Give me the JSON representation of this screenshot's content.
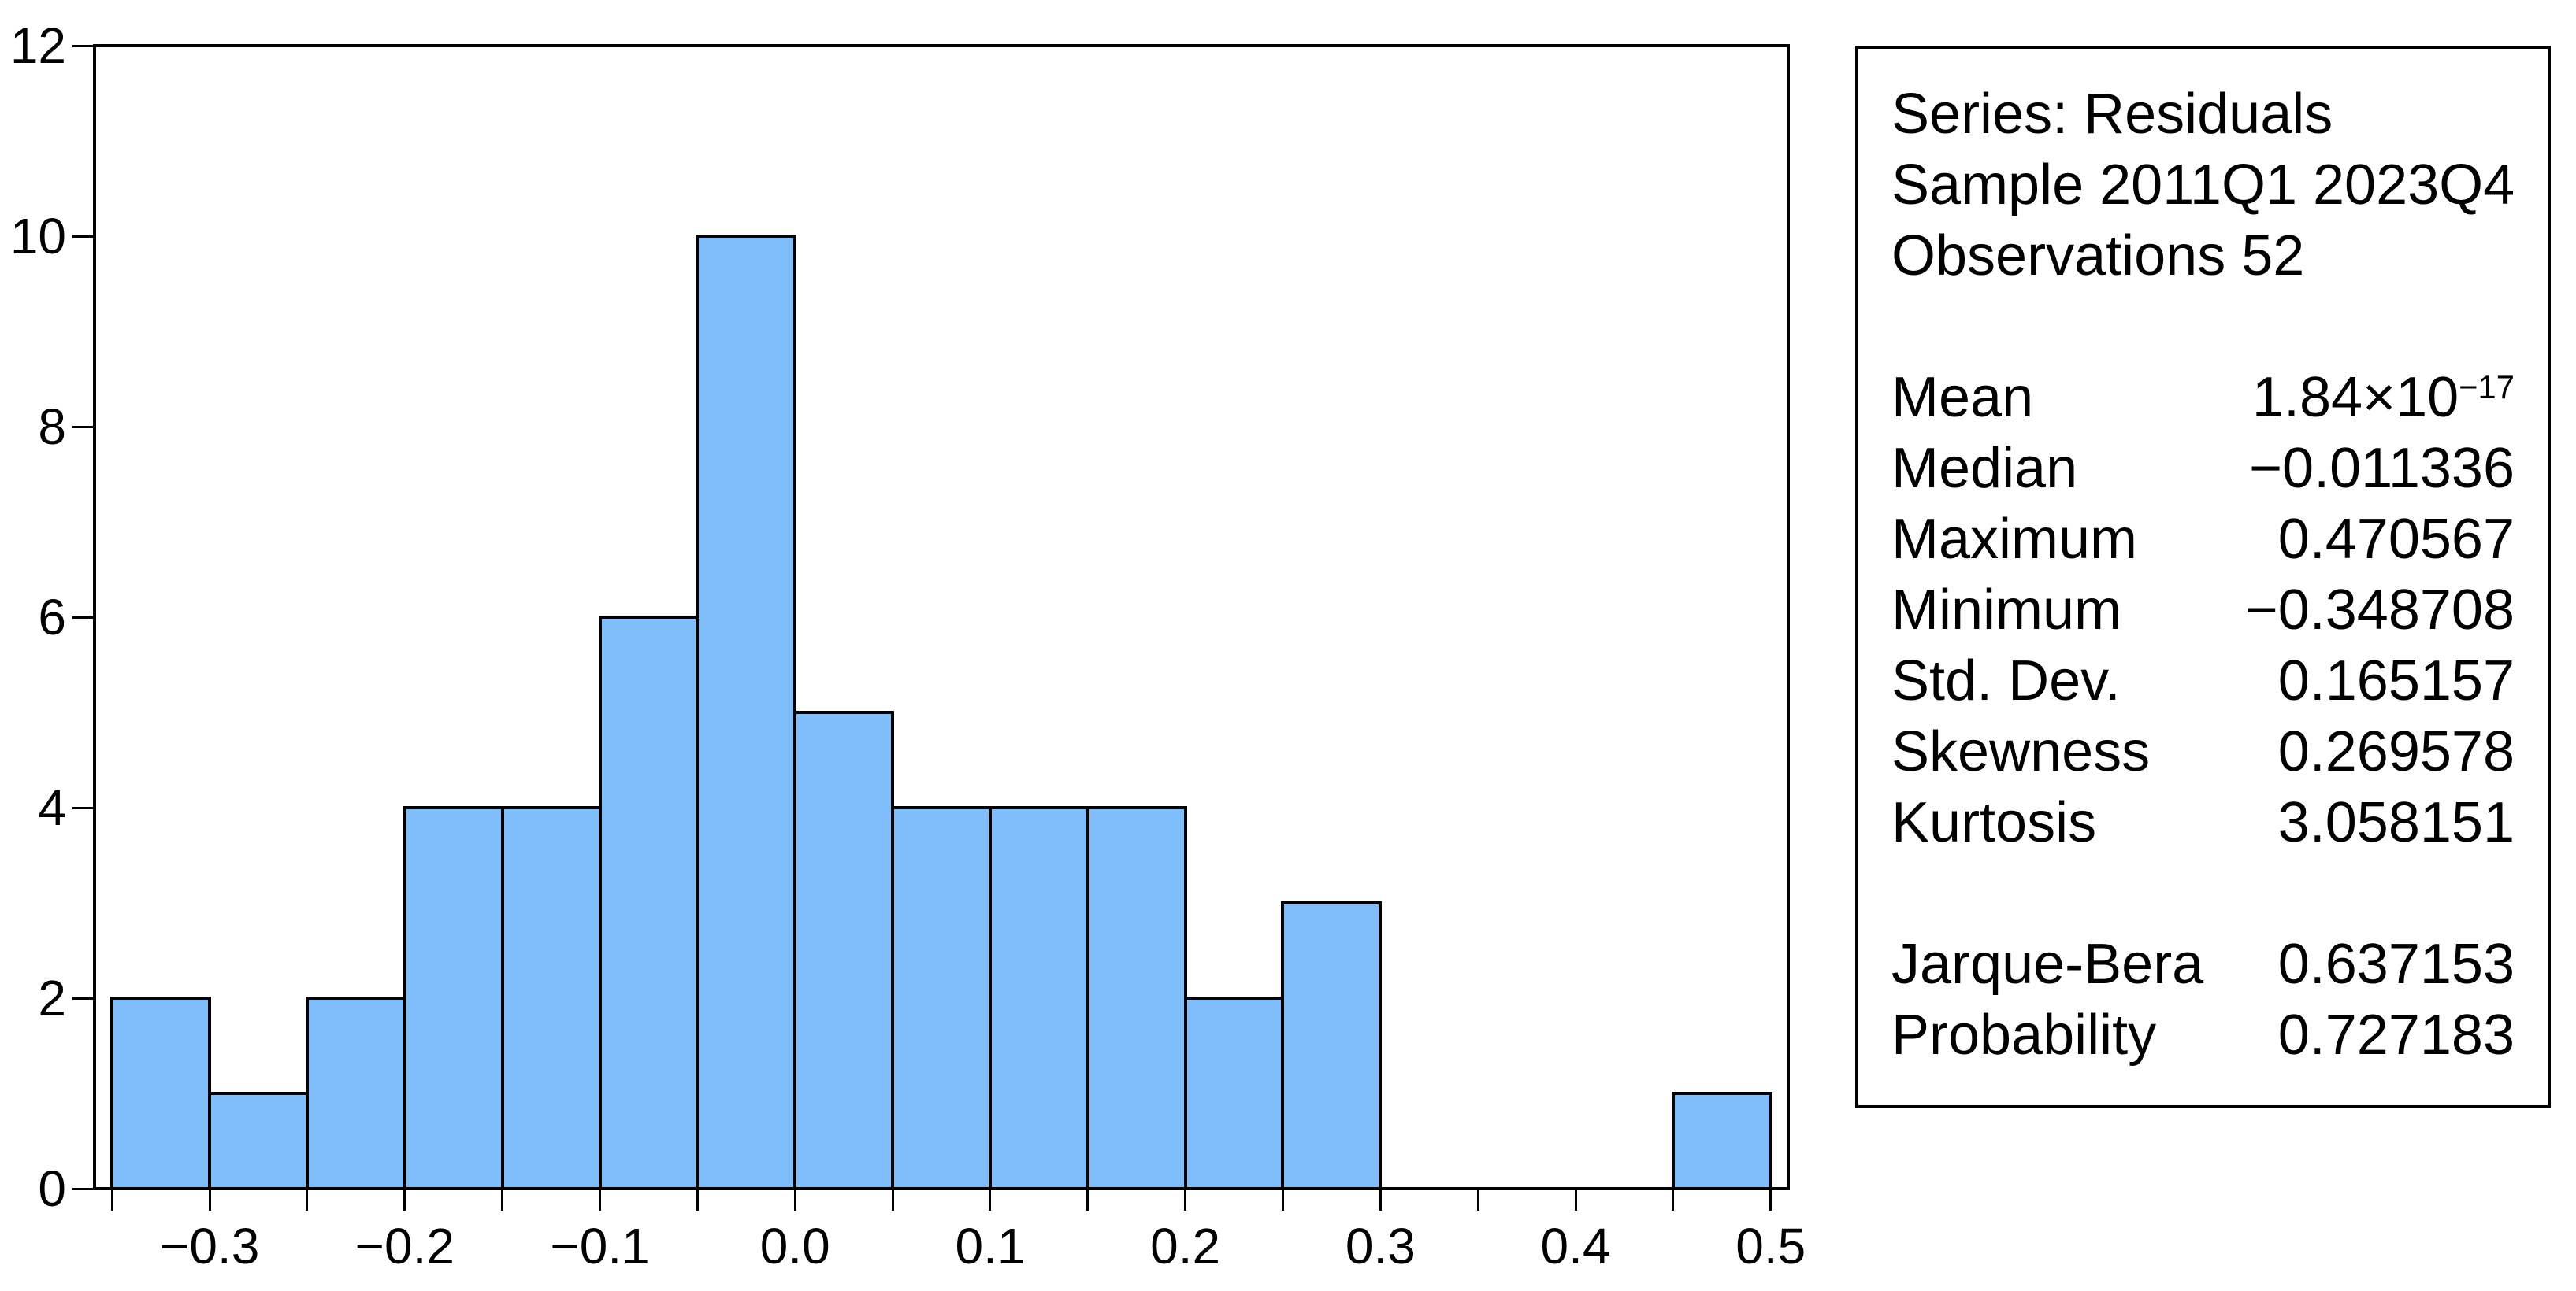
{
  "figure": {
    "background": "#ffffff"
  },
  "chart_data": {
    "type": "bar",
    "subtype": "histogram",
    "title": "",
    "xlabel": "",
    "ylabel": "",
    "grid": false,
    "legend": false,
    "bins": {
      "start": -0.35,
      "width": 0.05,
      "end": 0.5
    },
    "counts": [
      2,
      1,
      2,
      4,
      4,
      6,
      10,
      5,
      4,
      4,
      4,
      2,
      3,
      0,
      0,
      0,
      1
    ],
    "total_observations": 52,
    "xlim": [
      -0.359,
      0.509
    ],
    "ylim": [
      0,
      12
    ],
    "xtick_minor_step": 0.05,
    "xtick_labels": [
      {
        "value": -0.3,
        "label": "−0.3"
      },
      {
        "value": -0.2,
        "label": "−0.2"
      },
      {
        "value": -0.1,
        "label": "−0.1"
      },
      {
        "value": 0.0,
        "label": "0.0"
      },
      {
        "value": 0.1,
        "label": "0.1"
      },
      {
        "value": 0.2,
        "label": "0.2"
      },
      {
        "value": 0.3,
        "label": "0.3"
      },
      {
        "value": 0.4,
        "label": "0.4"
      },
      {
        "value": 0.5,
        "label": "0.5"
      }
    ],
    "ytick_labels": [
      {
        "value": 0,
        "label": "0"
      },
      {
        "value": 2,
        "label": "2"
      },
      {
        "value": 4,
        "label": "4"
      },
      {
        "value": 6,
        "label": "6"
      },
      {
        "value": 8,
        "label": "8"
      },
      {
        "value": 10,
        "label": "10"
      },
      {
        "value": 12,
        "label": "12"
      }
    ],
    "bar_fill": "#7FBEFA",
    "bar_stroke": "#000000",
    "axis_color": "#000000"
  },
  "stats_box": {
    "header_lines": [
      "Series: Residuals",
      "Sample 2011Q1 2023Q4",
      "Observations 52"
    ],
    "stats": [
      {
        "label": "Mean",
        "value": "1.84×10",
        "value_sup": "−17"
      },
      {
        "label": "Median",
        "value": "−0.011336"
      },
      {
        "label": "Maximum",
        "value": "0.470567"
      },
      {
        "label": "Minimum",
        "value": "−0.348708"
      },
      {
        "label": "Std. Dev.",
        "value": "0.165157"
      },
      {
        "label": "Skewness",
        "value": "0.269578"
      },
      {
        "label": "Kurtosis",
        "value": "3.058151"
      }
    ],
    "tests": [
      {
        "label": "Jarque-Bera",
        "value": "0.637153"
      },
      {
        "label": "Probability",
        "value": "0.727183"
      }
    ]
  }
}
